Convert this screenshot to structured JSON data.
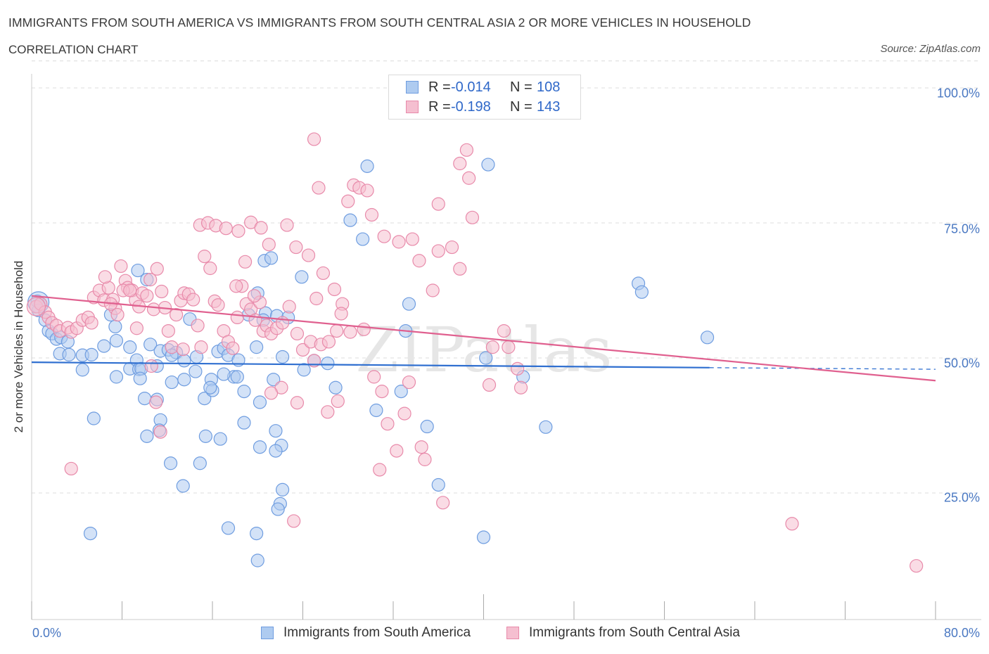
{
  "header": {
    "title": "IMMIGRANTS FROM SOUTH AMERICA VS IMMIGRANTS FROM SOUTH CENTRAL ASIA 2 OR MORE VEHICLES IN HOUSEHOLD",
    "subtitle": "CORRELATION CHART",
    "source": "Source: ZipAtlas.com"
  },
  "legend": {
    "series1": {
      "r_label": "R =",
      "r_value": "-0.014",
      "n_label": "N =",
      "n_value": "108"
    },
    "series2": {
      "r_label": "R =",
      "r_value": "-0.198",
      "n_label": "N =",
      "n_value": "143"
    }
  },
  "watermark": "ZIPatlas",
  "colors": {
    "blue_fill": "#aecbf0",
    "blue_stroke": "#6f9de0",
    "blue_line": "#2f6fd0",
    "pink_fill": "#f5bfd0",
    "pink_stroke": "#e88aaa",
    "pink_line": "#e0608f",
    "grid": "#dcdcdc",
    "tick_text": "#4a78c2"
  },
  "chart_data": {
    "type": "scatter",
    "title": "IMMIGRANTS FROM SOUTH AMERICA VS IMMIGRANTS FROM SOUTH CENTRAL ASIA 2 OR MORE VEHICLES IN HOUSEHOLD",
    "xlabel": "",
    "ylabel": "2 or more Vehicles in Household",
    "xlim": [
      0,
      80
    ],
    "ylim": [
      0,
      105
    ],
    "x_tick_labels": [
      "0.0%",
      "80.0%"
    ],
    "y_ticks": [
      25,
      50,
      75,
      100
    ],
    "y_tick_labels": [
      "25.0%",
      "50.0%",
      "75.0%",
      "100.0%"
    ],
    "legend_position": "top-center",
    "series": [
      {
        "name": "Immigrants from South America",
        "color": "#6f9de0",
        "trend": {
          "x": [
            0,
            60
          ],
          "y": [
            49.2,
            48.2
          ],
          "dashed_to_x": 80,
          "dashed_to_y": 47.9
        },
        "points": [
          [
            0.5,
            60.5
          ],
          [
            0.8,
            60
          ],
          [
            0.6,
            58.8
          ],
          [
            1.2,
            57
          ],
          [
            1.5,
            55
          ],
          [
            1.8,
            54.5
          ],
          [
            2.2,
            53.5
          ],
          [
            2.6,
            53.8
          ],
          [
            3.2,
            53
          ],
          [
            2.5,
            50.8
          ],
          [
            3.3,
            50.6
          ],
          [
            4.5,
            50.5
          ],
          [
            5.3,
            50.6
          ],
          [
            4.5,
            47.8
          ],
          [
            6.4,
            52.2
          ],
          [
            7.5,
            53.2
          ],
          [
            7.4,
            55.8
          ],
          [
            8.7,
            52
          ],
          [
            8.7,
            48
          ],
          [
            9.3,
            49.6
          ],
          [
            9.5,
            47.9
          ],
          [
            9.7,
            48
          ],
          [
            10.2,
            64.5
          ],
          [
            10.5,
            52.5
          ],
          [
            11.1,
            48.5
          ],
          [
            11.4,
            51.3
          ],
          [
            12.1,
            51.5
          ],
          [
            12.8,
            51
          ],
          [
            12.4,
            50.5
          ],
          [
            13.5,
            49.5
          ],
          [
            7.0,
            58
          ],
          [
            7.5,
            46.5
          ],
          [
            9.6,
            46.2
          ],
          [
            10.0,
            42.5
          ],
          [
            11.1,
            42.3
          ],
          [
            11.4,
            38.5
          ],
          [
            12.4,
            45.5
          ],
          [
            13.5,
            46
          ],
          [
            14.5,
            47.5
          ],
          [
            15.3,
            42.5
          ],
          [
            15.9,
            46
          ],
          [
            16.5,
            51.2
          ],
          [
            17.0,
            51.8
          ],
          [
            17.4,
            50.5
          ],
          [
            17.9,
            46.5
          ],
          [
            18.2,
            46.5
          ],
          [
            18.8,
            43.8
          ],
          [
            19.9,
            52
          ],
          [
            20.7,
            58.3
          ],
          [
            20.5,
            57
          ],
          [
            19.2,
            58
          ],
          [
            20.0,
            62
          ],
          [
            20.6,
            68
          ],
          [
            21.2,
            68.5
          ],
          [
            21.7,
            57.8
          ],
          [
            22.2,
            50.2
          ],
          [
            21.4,
            46
          ],
          [
            20.2,
            41.8
          ],
          [
            21.6,
            36.5
          ],
          [
            22.1,
            33.8
          ],
          [
            21.6,
            32.8
          ],
          [
            22.2,
            25.6
          ],
          [
            22.7,
            57.5
          ],
          [
            23.9,
            65
          ],
          [
            24.1,
            47.8
          ],
          [
            25.0,
            49.5
          ],
          [
            26.2,
            49
          ],
          [
            26.9,
            44.5
          ],
          [
            28.2,
            75.5
          ],
          [
            29.3,
            72
          ],
          [
            29.7,
            85.5
          ],
          [
            32.7,
            43.8
          ],
          [
            33.1,
            55
          ],
          [
            33.4,
            60
          ],
          [
            35.0,
            37.3
          ],
          [
            36.0,
            26.5
          ],
          [
            40.4,
            85.8
          ],
          [
            40.2,
            50
          ],
          [
            40.0,
            16.8
          ],
          [
            43.5,
            46.5
          ],
          [
            45.5,
            37.2
          ],
          [
            53.7,
            63.8
          ],
          [
            54.0,
            62.2
          ],
          [
            59.8,
            53.8
          ],
          [
            22.0,
            23
          ],
          [
            21.8,
            22
          ],
          [
            20.0,
            12.5
          ],
          [
            19.9,
            17.5
          ],
          [
            17.4,
            18.5
          ],
          [
            16.7,
            35
          ],
          [
            15.4,
            35.5
          ],
          [
            14.9,
            30.5
          ],
          [
            13.4,
            26.3
          ],
          [
            9.4,
            66.2
          ],
          [
            18.8,
            38
          ],
          [
            20.2,
            33.5
          ],
          [
            18.3,
            49.6
          ],
          [
            17.0,
            47
          ],
          [
            16.0,
            44
          ],
          [
            15.8,
            44.5
          ],
          [
            5.5,
            38.8
          ],
          [
            5.2,
            17.5
          ],
          [
            11.3,
            36.6
          ],
          [
            10.2,
            35.5
          ],
          [
            12.3,
            30.5
          ],
          [
            14.0,
            57.2
          ],
          [
            14.6,
            50.2
          ],
          [
            30.5,
            40.3
          ]
        ]
      },
      {
        "name": "Immigrants from South Central Asia",
        "color": "#e88aaa",
        "trend": {
          "x": [
            0,
            80
          ],
          "y": [
            61.5,
            45.8
          ]
        },
        "points": [
          [
            0.4,
            59.5
          ],
          [
            0.8,
            60
          ],
          [
            1.2,
            58.5
          ],
          [
            1.5,
            57.5
          ],
          [
            1.8,
            56.5
          ],
          [
            2.2,
            56
          ],
          [
            2.5,
            55
          ],
          [
            3.2,
            55.6
          ],
          [
            3.5,
            54.8
          ],
          [
            4.0,
            55.5
          ],
          [
            4.5,
            57
          ],
          [
            5.0,
            57.5
          ],
          [
            5.3,
            56.5
          ],
          [
            5.5,
            61.2
          ],
          [
            6.0,
            62.5
          ],
          [
            6.4,
            60.7
          ],
          [
            6.8,
            63
          ],
          [
            7.2,
            60.8
          ],
          [
            7.4,
            59.2
          ],
          [
            7.6,
            58
          ],
          [
            7.9,
            67
          ],
          [
            8.3,
            64.3
          ],
          [
            8.5,
            63
          ],
          [
            8.9,
            62.5
          ],
          [
            9.2,
            60.7
          ],
          [
            9.5,
            59.5
          ],
          [
            9.8,
            62
          ],
          [
            10.2,
            61.5
          ],
          [
            10.5,
            64.5
          ],
          [
            10.8,
            59
          ],
          [
            11.1,
            66.5
          ],
          [
            11.5,
            62.3
          ],
          [
            11.8,
            59.3
          ],
          [
            12.1,
            55
          ],
          [
            12.4,
            52
          ],
          [
            12.8,
            58
          ],
          [
            13.2,
            60.6
          ],
          [
            13.5,
            62
          ],
          [
            13.9,
            61.8
          ],
          [
            14.3,
            60.8
          ],
          [
            14.7,
            56
          ],
          [
            15.0,
            52
          ],
          [
            15.3,
            68.8
          ],
          [
            15.8,
            66.6
          ],
          [
            16.2,
            60.5
          ],
          [
            16.5,
            59.8
          ],
          [
            17.0,
            55
          ],
          [
            17.4,
            53
          ],
          [
            17.8,
            51.8
          ],
          [
            18.2,
            57.5
          ],
          [
            18.6,
            63.3
          ],
          [
            19.0,
            60
          ],
          [
            19.4,
            59
          ],
          [
            19.8,
            57
          ],
          [
            20.2,
            60.3
          ],
          [
            20.5,
            55
          ],
          [
            20.8,
            56
          ],
          [
            21.2,
            54.5
          ],
          [
            21.7,
            55.5
          ],
          [
            22.2,
            56.5
          ],
          [
            22.8,
            59.5
          ],
          [
            23.5,
            54.5
          ],
          [
            24.0,
            51.5
          ],
          [
            24.7,
            53
          ],
          [
            25.0,
            49.5
          ],
          [
            25.6,
            52.5
          ],
          [
            26.3,
            53
          ],
          [
            27.0,
            55
          ],
          [
            27.5,
            60
          ],
          [
            28.5,
            82
          ],
          [
            29.0,
            81.5
          ],
          [
            29.7,
            81
          ],
          [
            30.1,
            76.5
          ],
          [
            31.2,
            72.5
          ],
          [
            32.5,
            71.5
          ],
          [
            33.7,
            72
          ],
          [
            34.3,
            68
          ],
          [
            35.5,
            62.5
          ],
          [
            36.0,
            69.8
          ],
          [
            37.2,
            70.5
          ],
          [
            37.9,
            86
          ],
          [
            38.5,
            88.5
          ],
          [
            39.0,
            76
          ],
          [
            40.5,
            45
          ],
          [
            41.8,
            55
          ],
          [
            42.2,
            52
          ],
          [
            43.3,
            44.5
          ],
          [
            3.5,
            29.5
          ],
          [
            7.0,
            60
          ],
          [
            6.5,
            65
          ],
          [
            8.1,
            62.5
          ],
          [
            8.7,
            62.5
          ],
          [
            9.3,
            55.5
          ],
          [
            10.6,
            48.5
          ],
          [
            11.0,
            41.8
          ],
          [
            11.4,
            36.3
          ],
          [
            13.4,
            51.6
          ],
          [
            14.9,
            74.6
          ],
          [
            15.6,
            75
          ],
          [
            16.3,
            74.5
          ],
          [
            17.2,
            74
          ],
          [
            18.3,
            73.5
          ],
          [
            19.4,
            75.1
          ],
          [
            20.3,
            74.1
          ],
          [
            21.0,
            71
          ],
          [
            22.6,
            74.6
          ],
          [
            23.4,
            70.5
          ],
          [
            24.5,
            69
          ],
          [
            25.2,
            61
          ],
          [
            25.8,
            65.7
          ],
          [
            26.8,
            62.7
          ],
          [
            27.4,
            58.2
          ],
          [
            28.2,
            54.8
          ],
          [
            29.4,
            55.3
          ],
          [
            30.3,
            46.5
          ],
          [
            31.0,
            43.8
          ],
          [
            31.5,
            37.8
          ],
          [
            32.3,
            32.8
          ],
          [
            33.0,
            39.7
          ],
          [
            33.4,
            45.5
          ],
          [
            25.0,
            90.5
          ],
          [
            25.4,
            81.5
          ],
          [
            28.0,
            79
          ],
          [
            36.0,
            78.5
          ],
          [
            37.9,
            66.5
          ],
          [
            38.7,
            83.3
          ],
          [
            40.8,
            52
          ],
          [
            67.3,
            19.3
          ],
          [
            78.3,
            11.5
          ],
          [
            43.0,
            48
          ],
          [
            34.8,
            31.2
          ],
          [
            34.5,
            33.5
          ],
          [
            36.4,
            23.2
          ],
          [
            30.8,
            29.3
          ],
          [
            27.1,
            42
          ],
          [
            26.2,
            40
          ],
          [
            23.5,
            41.7
          ],
          [
            22.1,
            44.5
          ],
          [
            23.2,
            19.8
          ],
          [
            21.2,
            43.5
          ],
          [
            19.7,
            61.5
          ],
          [
            18.9,
            67.8
          ],
          [
            18.1,
            63.3
          ]
        ]
      }
    ]
  },
  "bottom_legend": {
    "item1": "Immigrants from South America",
    "item2": "Immigrants from South Central Asia"
  }
}
